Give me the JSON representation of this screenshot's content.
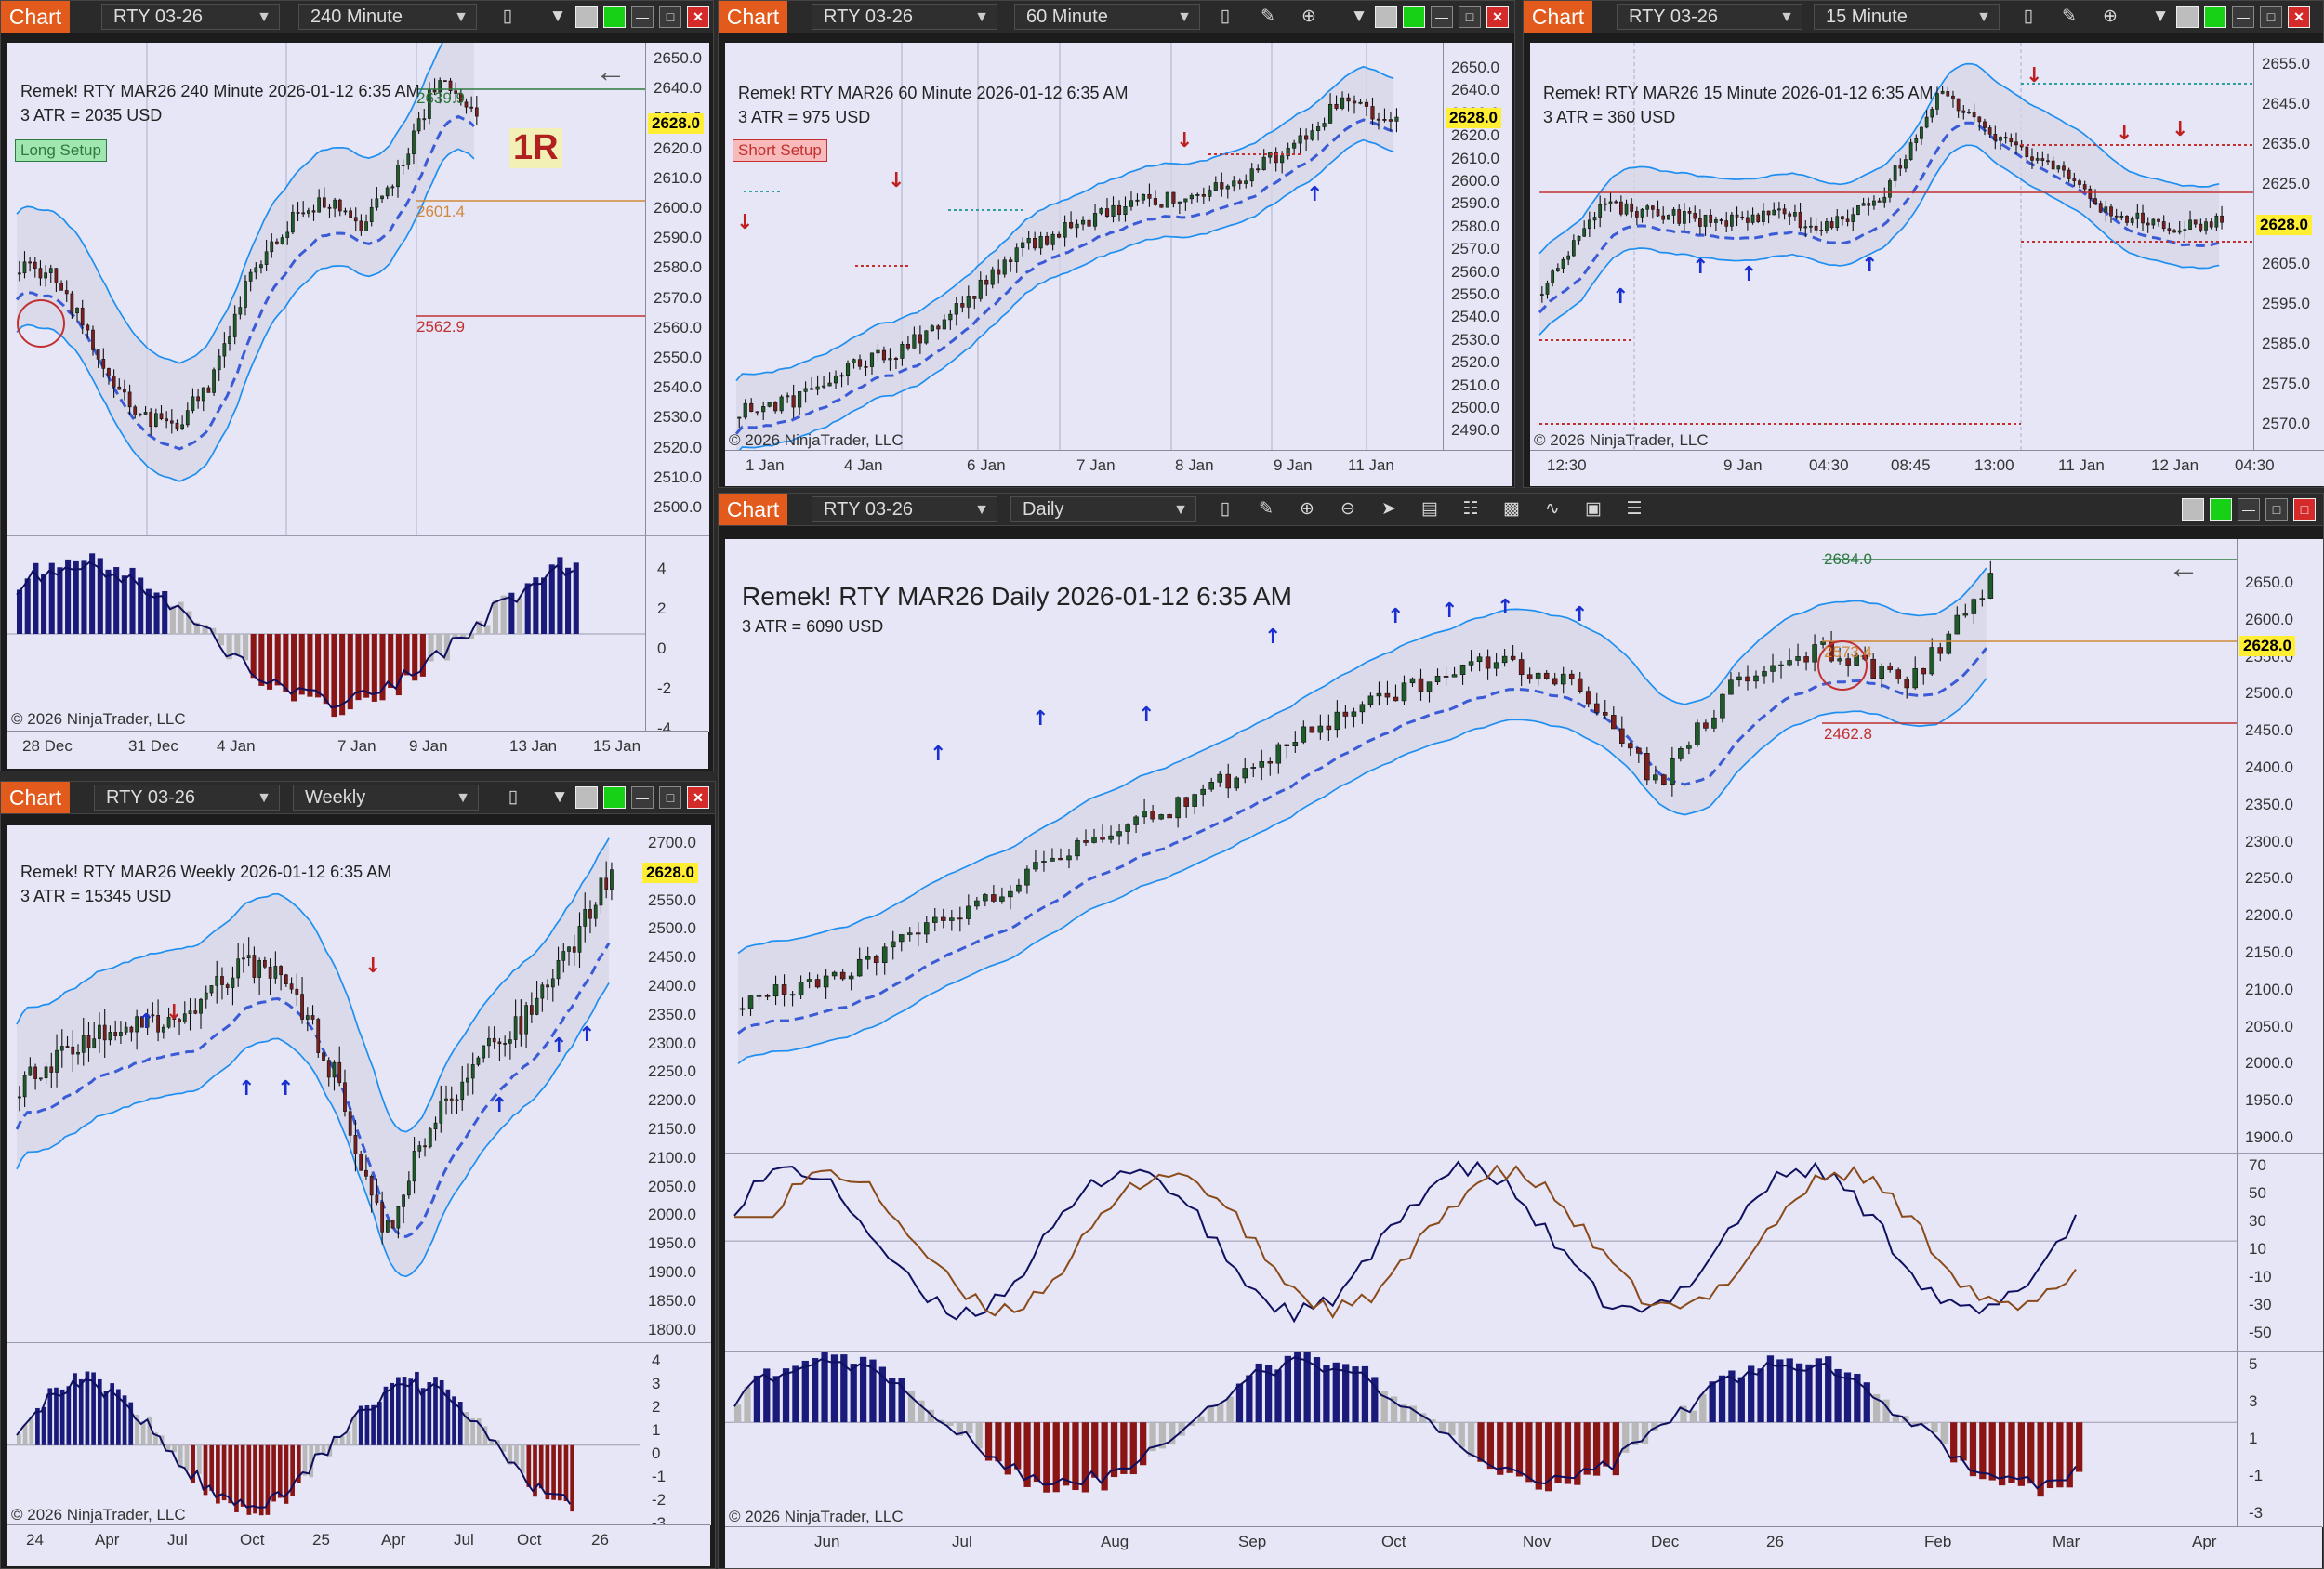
{
  "windows": {
    "w240": {
      "tab": "Chart",
      "instrument": "RTY 03-26",
      "interval": "240 Minute",
      "title": "Remek!  RTY MAR26  240 Minute  2026-01-12 6:35 AM",
      "atr": "3 ATR = 2035 USD",
      "setup": "Long Setup",
      "r_badge": "1R",
      "levels": {
        "top": "2639.9",
        "mid": "2601.4",
        "low": "2562.9"
      },
      "last_price": "2628.0",
      "price_ticks": [
        "2650.0",
        "2640.0",
        "2630.0",
        "2620.0",
        "2610.0",
        "2600.0",
        "2590.0",
        "2580.0",
        "2570.0",
        "2560.0",
        "2550.0",
        "2540.0",
        "2530.0",
        "2520.0",
        "2510.0",
        "2500.0"
      ],
      "ind_ticks": [
        "4",
        "2",
        "0",
        "-2",
        "-4"
      ],
      "time_ticks": [
        "28 Dec",
        "31 Dec",
        "4 Jan",
        "7 Jan",
        "9 Jan",
        "13 Jan",
        "15 Jan"
      ],
      "copyright": "© 2026 NinjaTrader, LLC"
    },
    "w60": {
      "tab": "Chart",
      "instrument": "RTY 03-26",
      "interval": "60 Minute",
      "title": "Remek!  RTY MAR26  60 Minute  2026-01-12 6:35 AM",
      "atr": "3 ATR = 975 USD",
      "setup": "Short Setup",
      "last_price": "2628.0",
      "price_ticks": [
        "2650.0",
        "2640.0",
        "2630.0",
        "2620.0",
        "2610.0",
        "2600.0",
        "2590.0",
        "2580.0",
        "2570.0",
        "2560.0",
        "2550.0",
        "2540.0",
        "2530.0",
        "2520.0",
        "2510.0",
        "2500.0",
        "2490.0"
      ],
      "time_ticks": [
        "1 Jan",
        "4 Jan",
        "6 Jan",
        "7 Jan",
        "8 Jan",
        "9 Jan",
        "11 Jan"
      ],
      "copyright": "© 2026 NinjaTrader, LLC"
    },
    "w15": {
      "tab": "Chart",
      "instrument": "RTY 03-26",
      "interval": "15 Minute",
      "title": "Remek!  RTY MAR26  15 Minute  2026-01-12 6:35 AM",
      "atr": "3 ATR = 360 USD",
      "last_price": "2628.0",
      "price_ticks": [
        "2655.0",
        "2645.0",
        "2635.0",
        "2625.0",
        "2615.0",
        "2605.0",
        "2595.0",
        "2585.0",
        "2575.0",
        "2570.0"
      ],
      "time_ticks": [
        "12:30",
        "9 Jan",
        "04:30",
        "08:45",
        "13:00",
        "11 Jan",
        "12 Jan",
        "04:30"
      ],
      "copyright": "© 2026 NinjaTrader, LLC"
    },
    "wweekly": {
      "tab": "Chart",
      "instrument": "RTY 03-26",
      "interval": "Weekly",
      "title": "Remek!  RTY MAR26  Weekly  2026-01-12 6:35 AM",
      "atr": "3 ATR = 15345 USD",
      "last_price": "2628.0",
      "price_ticks": [
        "2700.0",
        "2600.0",
        "2550.0",
        "2500.0",
        "2450.0",
        "2400.0",
        "2350.0",
        "2300.0",
        "2250.0",
        "2200.0",
        "2150.0",
        "2100.0",
        "2050.0",
        "2000.0",
        "1950.0",
        "1900.0",
        "1850.0",
        "1800.0"
      ],
      "ind_ticks": [
        "4",
        "3",
        "2",
        "1",
        "0",
        "-1",
        "-2",
        "-3"
      ],
      "time_ticks": [
        "24",
        "Apr",
        "Jul",
        "Oct",
        "25",
        "Apr",
        "Jul",
        "Oct",
        "26"
      ],
      "copyright": "© 2026 NinjaTrader, LLC"
    },
    "wdaily": {
      "tab": "Chart",
      "instrument": "RTY 03-26",
      "interval": "Daily",
      "title": "Remek!  RTY MAR26  Daily  2026-01-12 6:35 AM",
      "atr": "3 ATR = 6090 USD",
      "levels": {
        "top": "2684.0",
        "mid": "2573.4",
        "low": "2462.8"
      },
      "last_price": "2628.0",
      "price_ticks": [
        "2650.0",
        "2600.0",
        "2550.0",
        "2500.0",
        "2450.0",
        "2400.0",
        "2350.0",
        "2300.0",
        "2250.0",
        "2200.0",
        "2150.0",
        "2100.0",
        "2050.0",
        "2000.0",
        "1950.0",
        "1900.0"
      ],
      "osc_ticks": [
        "70",
        "50",
        "30",
        "10",
        "-10",
        "-30",
        "-50"
      ],
      "ind_ticks": [
        "5",
        "3",
        "1",
        "-1",
        "-3"
      ],
      "time_ticks": [
        "Jun",
        "Jul",
        "Aug",
        "Sep",
        "Oct",
        "Nov",
        "Dec",
        "26",
        "Feb",
        "Mar",
        "Apr"
      ],
      "copyright": "© 2026 NinjaTrader, LLC"
    }
  },
  "colors": {
    "tab_orange": "#e25a1c",
    "plot_bg": "#e6e6f6",
    "up_candle": "#1f5a2a",
    "down_candle": "#7a1e1e",
    "band": "#1e8ff0",
    "ema_dashed": "#3b5bd6",
    "last_price_bg": "#ffee33",
    "long_green": "#2c7a3f",
    "short_red": "#c23030"
  },
  "icons": [
    "candlestick-icon",
    "pencil-icon",
    "zoom-in-icon",
    "zoom-out-icon",
    "pointer-icon",
    "data-box-icon",
    "bar-spacing-icon",
    "chart-trader-icon",
    "indicators-icon",
    "strategies-icon",
    "list-icon"
  ]
}
